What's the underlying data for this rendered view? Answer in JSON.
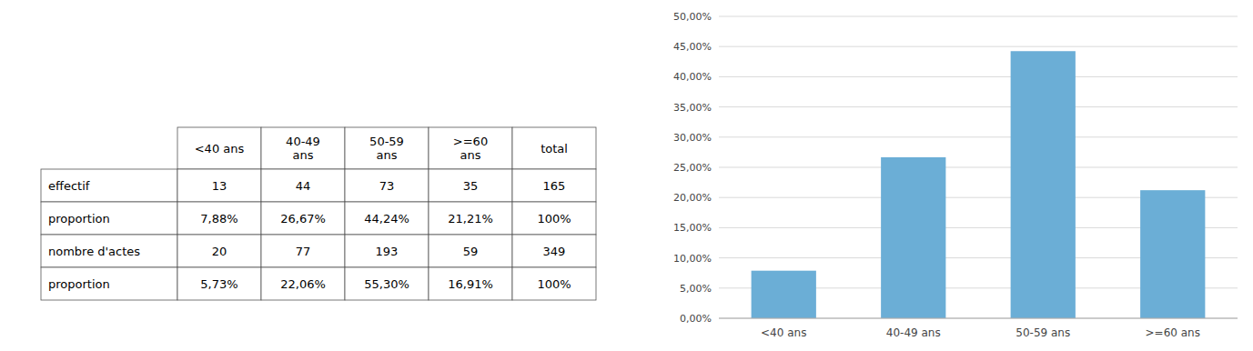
{
  "chart_data": [
    {
      "type": "table",
      "columns": [
        null,
        "<40 ans",
        "40-49\nans",
        "50-59\nans",
        ">=60\nans",
        "total"
      ],
      "rows": [
        [
          "effectif",
          "13",
          "44",
          "73",
          "35",
          "165"
        ],
        [
          "proportion",
          "7,88%",
          "26,67%",
          "44,24%",
          "21,21%",
          "100%"
        ],
        [
          "nombre d'actes",
          "20",
          "77",
          "193",
          "59",
          "349"
        ],
        [
          "proportion",
          "5,73%",
          "22,06%",
          "55,30%",
          "16,91%",
          "100%"
        ]
      ]
    },
    {
      "type": "bar",
      "categories": [
        "<40 ans",
        "40-49 ans",
        "50-59 ans",
        ">=60 ans"
      ],
      "values": [
        7.88,
        26.67,
        44.24,
        21.21
      ],
      "color": "#6baed6",
      "ylim": [
        0,
        50
      ],
      "yticks": [
        {
          "value": 0,
          "label": "0,00%"
        },
        {
          "value": 5,
          "label": "5,00%"
        },
        {
          "value": 10,
          "label": "10,00%"
        },
        {
          "value": 15,
          "label": "15,00%"
        },
        {
          "value": 20,
          "label": "20,00%"
        },
        {
          "value": 25,
          "label": "25,00%"
        },
        {
          "value": 30,
          "label": "30,00%"
        },
        {
          "value": 35,
          "label": "35,00%"
        },
        {
          "value": 40,
          "label": "40,00%"
        },
        {
          "value": 45,
          "label": "45,00%"
        },
        {
          "value": 50,
          "label": "50,00%"
        }
      ],
      "grid": true
    }
  ]
}
